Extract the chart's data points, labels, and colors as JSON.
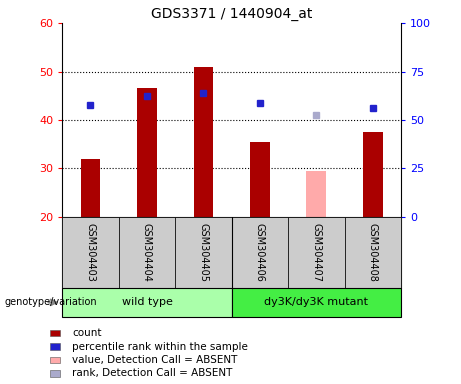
{
  "title": "GDS3371 / 1440904_at",
  "samples": [
    "GSM304403",
    "GSM304404",
    "GSM304405",
    "GSM304406",
    "GSM304407",
    "GSM304408"
  ],
  "count_values": [
    32,
    46.5,
    51,
    35.5,
    null,
    37.5
  ],
  "count_absent_values": [
    null,
    null,
    null,
    null,
    29.5,
    null
  ],
  "rank_values": [
    43,
    45,
    45.5,
    43.5,
    null,
    42.5
  ],
  "rank_absent_values": [
    null,
    null,
    null,
    null,
    41,
    null
  ],
  "ylim_left": [
    20,
    60
  ],
  "ylim_right": [
    0,
    100
  ],
  "yticks_left": [
    20,
    30,
    40,
    50,
    60
  ],
  "yticks_right": [
    0,
    25,
    50,
    75,
    100
  ],
  "bar_color": "#aa0000",
  "bar_absent_color": "#ffaaaa",
  "rank_color": "#2222cc",
  "rank_absent_color": "#aaaacc",
  "group_label": "genotype/variation",
  "legend_items": [
    {
      "label": "count",
      "color": "#aa0000"
    },
    {
      "label": "percentile rank within the sample",
      "color": "#2222cc"
    },
    {
      "label": "value, Detection Call = ABSENT",
      "color": "#ffaaaa"
    },
    {
      "label": "rank, Detection Call = ABSENT",
      "color": "#aaaacc"
    }
  ],
  "bar_width": 0.35,
  "marker_size": 5,
  "background_plot": "#ffffff",
  "background_sample": "#cccccc",
  "background_group1": "#aaffaa",
  "background_group2": "#44ee44",
  "wt_label": "wild type",
  "mutant_label": "dy3K/dy3K mutant",
  "grid_dotted_at": [
    30,
    40,
    50
  ]
}
